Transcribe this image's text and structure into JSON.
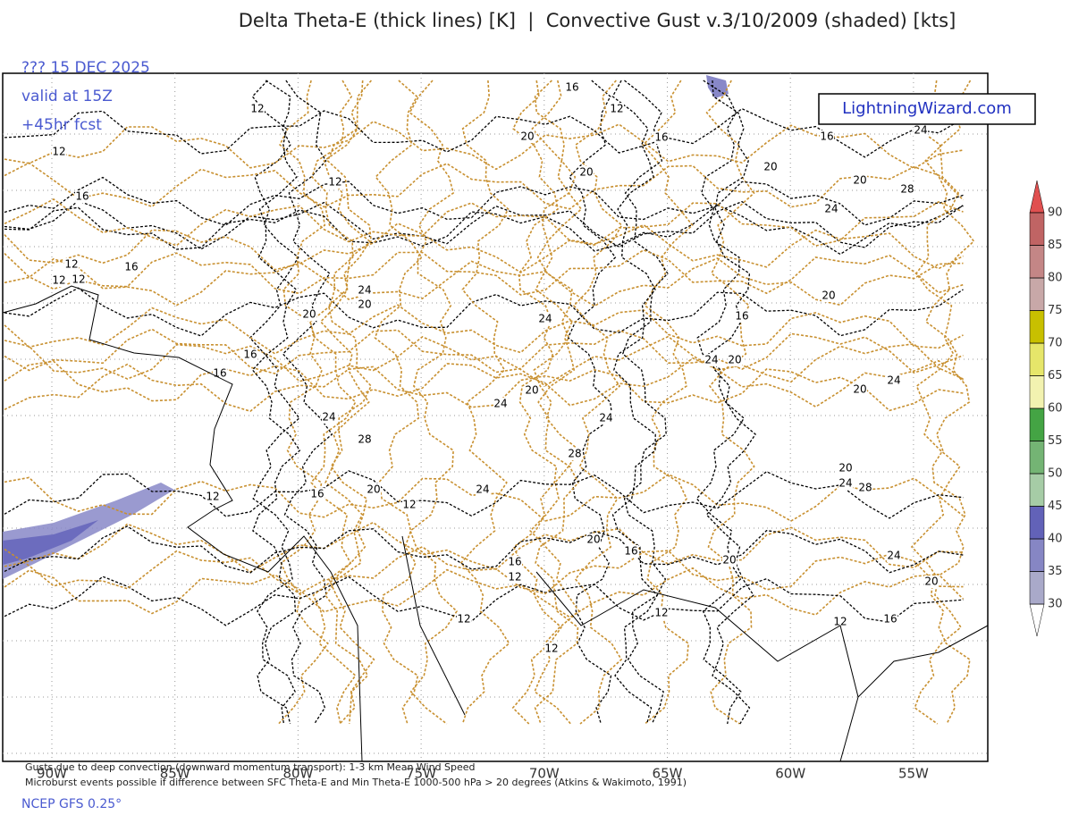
{
  "header": {
    "title": "Delta Theta-E (thick lines) [K]  |  Convective Gust v.3/10/2009 (shaded) [kts]",
    "run": "??? 15 DEC 2025",
    "valid": "valid at 15Z",
    "forecast": "+45hr fcst",
    "logo": "LightningWizard.com"
  },
  "map": {
    "lon_labels": [
      "90W",
      "85W",
      "80W",
      "75W",
      "70W",
      "65W",
      "60W",
      "55W"
    ],
    "contour_labels": [
      12,
      12,
      16,
      20,
      16,
      16,
      24,
      12,
      12,
      16,
      20,
      20,
      20,
      28,
      24,
      12,
      16,
      12,
      12,
      24,
      20,
      20,
      24,
      20,
      16,
      16,
      24,
      20,
      16,
      20,
      20,
      24,
      24,
      24,
      24,
      28,
      28,
      20,
      24,
      28,
      12,
      16,
      20,
      12,
      24,
      20,
      16,
      20,
      16,
      12,
      24,
      20,
      12,
      12,
      12,
      16,
      12
    ]
  },
  "colorbar": {
    "ticks": [
      30,
      35,
      40,
      45,
      50,
      55,
      60,
      65,
      70,
      75,
      80,
      85,
      90
    ],
    "colors": [
      "#a9a9c9",
      "#8686c4",
      "#6262b8",
      "#a6cca6",
      "#74b474",
      "#44a444",
      "#f2f2b0",
      "#e6e66a",
      "#c8c000",
      "#c8a8a8",
      "#c48686",
      "#c06464"
    ]
  },
  "footer": {
    "note1": "Gusts due to deep convection (downward momentum transport): 1-3 km Mean Wind Speed",
    "note2": "Microburst events possible if difference between SFC Theta-E and Min Theta-E 1000-500 hPa > 20 degrees (Atkins & Wakimoto, 1991)",
    "model": "NCEP GFS 0.25°"
  }
}
